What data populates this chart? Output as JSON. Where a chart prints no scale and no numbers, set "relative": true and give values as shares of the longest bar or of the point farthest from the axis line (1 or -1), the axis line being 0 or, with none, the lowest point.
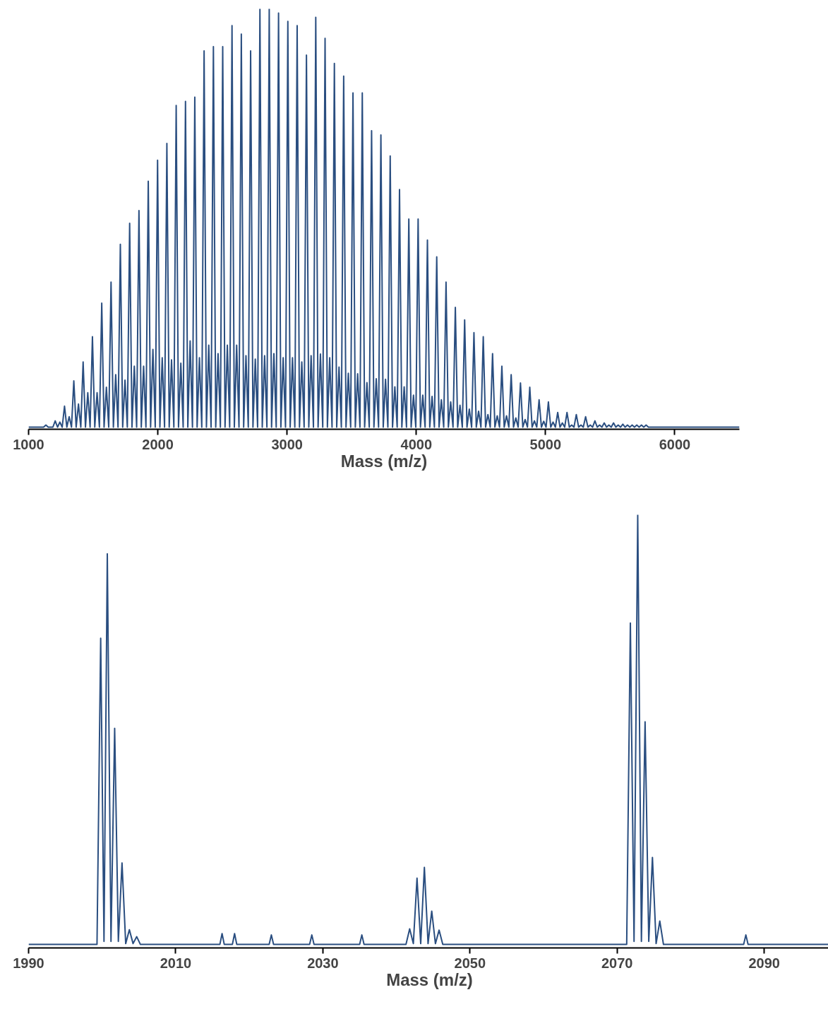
{
  "chart_data": [
    {
      "type": "line",
      "relative": true,
      "xlabel": "Mass (m/z)",
      "xlim": [
        1000,
        6500
      ],
      "xticks": [
        1000,
        2000,
        3000,
        4000,
        5000,
        6000
      ],
      "tick_labels": "x",
      "x": [
        1000,
        1116,
        1134,
        1152,
        1170,
        1188,
        1206,
        1224,
        1242,
        1260,
        1278,
        1296,
        1314,
        1332,
        1350,
        1368,
        1386,
        1404,
        1422,
        1440,
        1458,
        1476,
        1494,
        1512,
        1530,
        1548,
        1566,
        1584,
        1602,
        1620,
        1638,
        1656,
        1674,
        1692,
        1710,
        1728,
        1746,
        1764,
        1782,
        1800,
        1818,
        1836,
        1854,
        1872,
        1890,
        1908,
        1926,
        1944,
        1962,
        1980,
        1998,
        2016,
        2034,
        2052,
        2070,
        2088,
        2106,
        2124,
        2142,
        2160,
        2178,
        2196,
        2214,
        2232,
        2250,
        2268,
        2286,
        2304,
        2322,
        2340,
        2358,
        2376,
        2394,
        2412,
        2430,
        2448,
        2466,
        2484,
        2502,
        2520,
        2538,
        2556,
        2574,
        2592,
        2610,
        2628,
        2646,
        2664,
        2682,
        2700,
        2718,
        2736,
        2754,
        2772,
        2790,
        2808,
        2826,
        2844,
        2862,
        2880,
        2898,
        2916,
        2934,
        2952,
        2970,
        2988,
        3006,
        3024,
        3042,
        3060,
        3078,
        3096,
        3114,
        3132,
        3150,
        3168,
        3186,
        3204,
        3222,
        3240,
        3258,
        3276,
        3294,
        3312,
        3330,
        3348,
        3366,
        3384,
        3402,
        3420,
        3438,
        3456,
        3474,
        3492,
        3510,
        3528,
        3546,
        3564,
        3582,
        3600,
        3618,
        3636,
        3654,
        3672,
        3690,
        3708,
        3726,
        3744,
        3762,
        3780,
        3798,
        3816,
        3834,
        3852,
        3870,
        3888,
        3906,
        3924,
        3942,
        3960,
        3978,
        3996,
        4014,
        4032,
        4050,
        4068,
        4086,
        4104,
        4122,
        4140,
        4158,
        4176,
        4194,
        4212,
        4230,
        4248,
        4266,
        4284,
        4302,
        4320,
        4338,
        4356,
        4374,
        4392,
        4410,
        4428,
        4446,
        4464,
        4482,
        4500,
        4518,
        4536,
        4554,
        4572,
        4590,
        4608,
        4626,
        4644,
        4662,
        4680,
        4698,
        4716,
        4734,
        4752,
        4770,
        4788,
        4806,
        4824,
        4842,
        4860,
        4878,
        4896,
        4914,
        4932,
        4950,
        4968,
        4986,
        5004,
        5022,
        5040,
        5058,
        5076,
        5094,
        5112,
        5130,
        5148,
        5166,
        5184,
        5202,
        5220,
        5238,
        5256,
        5274,
        5292,
        5310,
        5328,
        5346,
        5364,
        5382,
        5400,
        5418,
        5436,
        5454,
        5472,
        5490,
        5508,
        5526,
        5544,
        5562,
        5580,
        5598,
        5616,
        5634,
        5652,
        5670,
        5688,
        5706,
        5724,
        5742,
        5760,
        5778,
        5796,
        6500
      ],
      "series": [
        {
          "color": "#2a4e80",
          "values": [
            0.005,
            0.005,
            0.01,
            0.005,
            0.005,
            0.005,
            0.02,
            0.005,
            0.017,
            0.005,
            0.055,
            0.005,
            0.03,
            0.005,
            0.115,
            0.005,
            0.06,
            0.005,
            0.16,
            0.005,
            0.087,
            0.005,
            0.22,
            0.005,
            0.087,
            0.005,
            0.3,
            0.005,
            0.1,
            0.005,
            0.35,
            0.005,
            0.13,
            0.005,
            0.44,
            0.005,
            0.117,
            0.005,
            0.49,
            0.005,
            0.15,
            0.005,
            0.52,
            0.005,
            0.15,
            0.005,
            0.59,
            0.005,
            0.19,
            0.005,
            0.64,
            0.005,
            0.17,
            0.005,
            0.68,
            0.005,
            0.165,
            0.005,
            0.77,
            0.005,
            0.157,
            0.005,
            0.78,
            0.005,
            0.21,
            0.005,
            0.79,
            0.005,
            0.17,
            0.005,
            0.9,
            0.005,
            0.2,
            0.005,
            0.91,
            0.005,
            0.18,
            0.005,
            0.91,
            0.005,
            0.2,
            0.005,
            0.96,
            0.005,
            0.2,
            0.005,
            0.94,
            0.005,
            0.175,
            0.005,
            0.9,
            0.005,
            0.167,
            0.005,
            1.0,
            0.005,
            0.175,
            0.005,
            1.0,
            0.005,
            0.18,
            0.005,
            0.99,
            0.005,
            0.17,
            0.005,
            0.97,
            0.005,
            0.17,
            0.005,
            0.96,
            0.005,
            0.16,
            0.005,
            0.89,
            0.005,
            0.175,
            0.005,
            0.98,
            0.005,
            0.179,
            0.005,
            0.93,
            0.005,
            0.17,
            0.005,
            0.87,
            0.005,
            0.148,
            0.005,
            0.84,
            0.005,
            0.133,
            0.005,
            0.8,
            0.005,
            0.132,
            0.005,
            0.8,
            0.005,
            0.111,
            0.005,
            0.71,
            0.005,
            0.12,
            0.005,
            0.7,
            0.005,
            0.119,
            0.005,
            0.65,
            0.005,
            0.101,
            0.005,
            0.57,
            0.005,
            0.101,
            0.005,
            0.5,
            0.005,
            0.081,
            0.005,
            0.5,
            0.005,
            0.081,
            0.005,
            0.45,
            0.005,
            0.078,
            0.005,
            0.41,
            0.005,
            0.07,
            0.005,
            0.35,
            0.005,
            0.065,
            0.005,
            0.29,
            0.005,
            0.057,
            0.005,
            0.26,
            0.005,
            0.048,
            0.005,
            0.23,
            0.005,
            0.043,
            0.005,
            0.22,
            0.005,
            0.035,
            0.005,
            0.18,
            0.005,
            0.032,
            0.005,
            0.15,
            0.005,
            0.032,
            0.005,
            0.13,
            0.005,
            0.027,
            0.005,
            0.11,
            0.005,
            0.023,
            0.005,
            0.1,
            0.005,
            0.02,
            0.005,
            0.07,
            0.005,
            0.019,
            0.005,
            0.065,
            0.005,
            0.017,
            0.005,
            0.04,
            0.005,
            0.015,
            0.005,
            0.04,
            0.005,
            0.01,
            0.005,
            0.035,
            0.005,
            0.01,
            0.005,
            0.03,
            0.005,
            0.01,
            0.005,
            0.02,
            0.005,
            0.01,
            0.005,
            0.015,
            0.005,
            0.01,
            0.005,
            0.015,
            0.005,
            0.01,
            0.005,
            0.012,
            0.005,
            0.01,
            0.005,
            0.01,
            0.005,
            0.01,
            0.005,
            0.01,
            0.005,
            0.01,
            0.005,
            0.005
          ]
        }
      ]
    },
    {
      "type": "line",
      "relative": true,
      "xlabel": "Mass (m/z)",
      "xlim": [
        1990,
        2099
      ],
      "xticks": [
        1990,
        2010,
        2030,
        2050,
        2070,
        2090
      ],
      "tick_labels": "x",
      "x": [
        1990,
        1999.3,
        1999.8,
        2000.25,
        2000.7,
        2001.2,
        2001.7,
        2002.2,
        2002.7,
        2003.2,
        2003.7,
        2004.2,
        2004.7,
        2005.2,
        2016,
        2016.3,
        2016.6,
        2017.7,
        2018,
        2018.3,
        2022.7,
        2023,
        2023.3,
        2028.2,
        2028.5,
        2028.8,
        2035,
        2035.3,
        2035.6,
        2041.3,
        2041.8,
        2042.3,
        2042.8,
        2043.3,
        2043.8,
        2044.3,
        2044.8,
        2045.3,
        2045.8,
        2046.3,
        2071.3,
        2071.8,
        2072.3,
        2072.8,
        2073.3,
        2073.8,
        2074.3,
        2074.8,
        2075.3,
        2075.8,
        2076.3,
        2087.2,
        2087.5,
        2087.8,
        2099
      ],
      "series": [
        {
          "color": "#2a4e80",
          "values": [
            0.008,
            0.008,
            0.715,
            0.015,
            0.91,
            0.015,
            0.507,
            0.015,
            0.196,
            0.01,
            0.042,
            0.01,
            0.026,
            0.008,
            0.008,
            0.033,
            0.008,
            0.008,
            0.033,
            0.008,
            0.008,
            0.03,
            0.008,
            0.008,
            0.03,
            0.008,
            0.008,
            0.03,
            0.008,
            0.008,
            0.044,
            0.01,
            0.161,
            0.01,
            0.186,
            0.01,
            0.085,
            0.01,
            0.041,
            0.008,
            0.008,
            0.75,
            0.015,
            1.0,
            0.015,
            0.522,
            0.015,
            0.209,
            0.01,
            0.062,
            0.008,
            0.008,
            0.03,
            0.008,
            0.008
          ]
        }
      ]
    }
  ]
}
